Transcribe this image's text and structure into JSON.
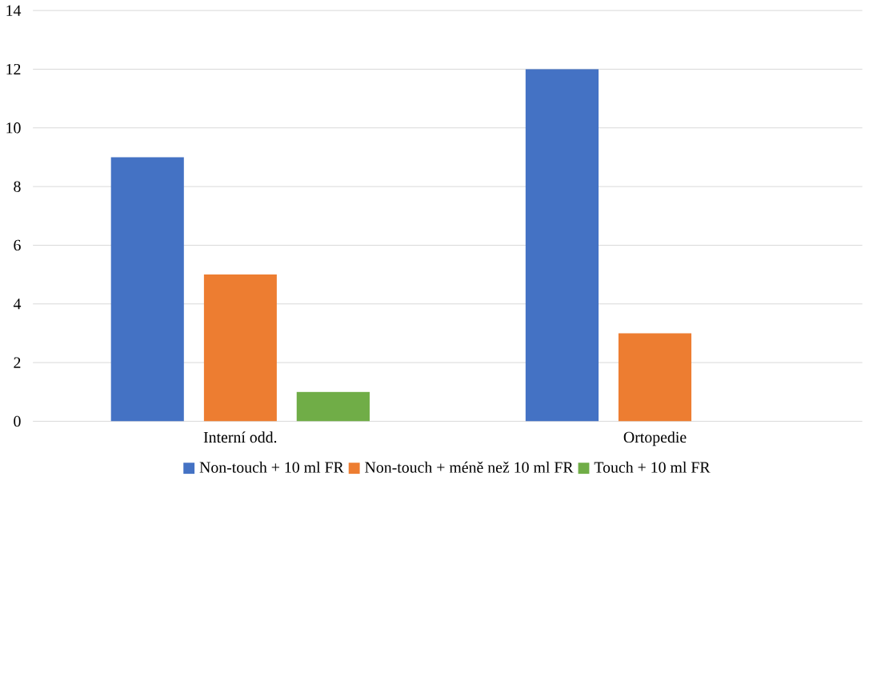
{
  "chart_data": {
    "type": "bar",
    "categories": [
      "Interní odd.",
      "Ortopedie"
    ],
    "series": [
      {
        "name": "Non-touch + 10 ml FR",
        "color": "#4472c4",
        "values": [
          9,
          12
        ]
      },
      {
        "name": "Non-touch + méně než 10 ml FR",
        "color": "#ed7d31",
        "values": [
          5,
          3
        ]
      },
      {
        "name": "Touch + 10 ml FR",
        "color": "#70ad47",
        "values": [
          1,
          null
        ]
      }
    ],
    "ylim": [
      0,
      14
    ],
    "yticks": [
      0,
      2,
      4,
      6,
      8,
      10,
      12,
      14
    ],
    "grid": "y",
    "legend": "bottom"
  }
}
